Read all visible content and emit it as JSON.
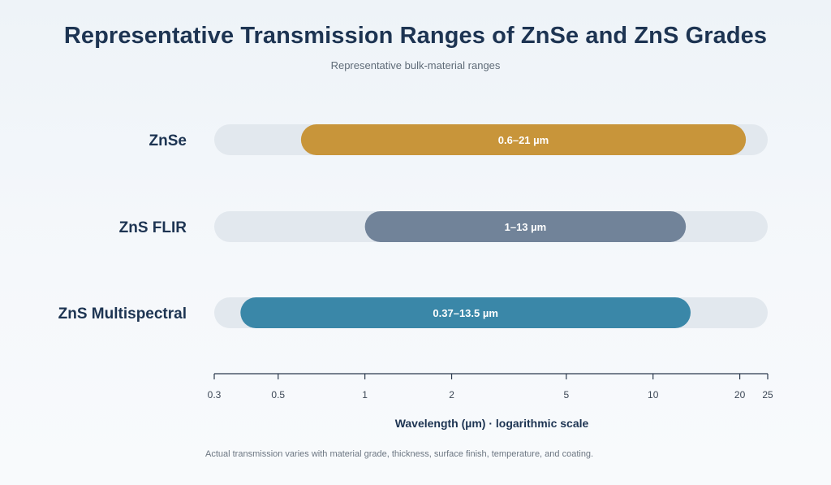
{
  "header": {
    "title": "Representative Transmission Ranges of ZnSe and ZnS Grades",
    "subtitle": "Representative bulk-material ranges"
  },
  "footnote": "Actual transmission varies with material grade, thickness, surface finish, temperature, and coating.",
  "chart_data": {
    "type": "bar",
    "orientation": "horizontal-range",
    "xscale": "log",
    "xlim": [
      0.3,
      25
    ],
    "xticks": [
      0.3,
      0.5,
      1,
      2,
      5,
      10,
      20,
      25
    ],
    "xtick_labels": [
      "0.3",
      "0.5",
      "1",
      "2",
      "5",
      "10",
      "20",
      "25"
    ],
    "xlabel": "Wavelength (µm) · logarithmic scale",
    "ylabel": "",
    "grid": false,
    "categories": [
      "ZnSe",
      "ZnS FLIR",
      "ZnS Multispectral"
    ],
    "series": [
      {
        "ranges": [
          {
            "category": "ZnSe",
            "start": 0.6,
            "end": 21,
            "label": "0.6–21 µm",
            "color": "#c8953a"
          },
          {
            "category": "ZnS FLIR",
            "start": 1,
            "end": 13,
            "label": "1–13 µm",
            "color": "#718399"
          },
          {
            "category": "ZnS Multispectral",
            "start": 0.37,
            "end": 13.5,
            "label": "0.37–13.5 µm",
            "color": "#3a87a8"
          }
        ]
      }
    ]
  },
  "colors": {
    "track": "#e2e8ee",
    "axis": "#2b3a4e",
    "category_text": "#1d3452",
    "tick_text": "#3c4756"
  }
}
